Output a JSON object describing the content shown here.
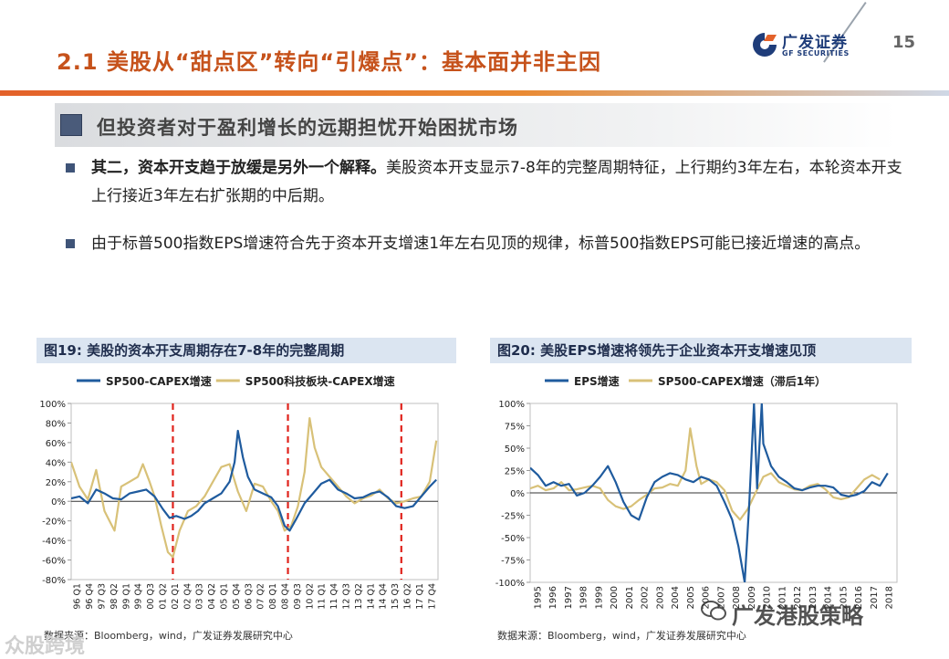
{
  "header": {
    "title": "2.1 美股从“甜点区”转向“引爆点”：基本面并非主因",
    "page_number": "15",
    "logo_cn": "广发证券",
    "logo_en": "GF SECURITIES"
  },
  "subheading": "但投资者对于盈利增长的远期担忧开始困扰市场",
  "bullets": [
    {
      "bold": "其二，资本开支趋于放缓是另外一个解释。",
      "rest": "美股资本开支显示7-8年的完整周期特征，上行期约3年左右，本轮资本开支上行接近3年左右扩张期的中后期。"
    },
    {
      "bold": "",
      "rest": "由于标普500指数EPS增速符合先于资本开支增速1年左右见顶的规律，标普500指数EPS可能已接近增速的高点。"
    }
  ],
  "watermark": "广发港股策略",
  "watermark2": "众股跨境",
  "colors": {
    "accent": "#c6521b",
    "series_blue": "#1f5b9e",
    "series_gold": "#d8c178",
    "cycle_line": "#e0231c"
  },
  "chart_data": [
    {
      "type": "line",
      "figure_label": "图19:",
      "title": "美股的资本开支周期存在7-8年的完整周期",
      "source": "数据来源：Bloomberg，wind，广发证券发展研究中心",
      "ylim": [
        -80,
        100
      ],
      "yticks": [
        "100%",
        "80%",
        "60%",
        "40%",
        "20%",
        "0%",
        "-20%",
        "-40%",
        "-60%",
        "-80%"
      ],
      "ytick_values": [
        100,
        80,
        60,
        40,
        20,
        0,
        -20,
        -40,
        -60,
        -80
      ],
      "x_tick_labels": [
        "96 Q1",
        "96 Q4",
        "97 Q3",
        "98 Q2",
        "99 Q1",
        "99 Q4",
        "00 Q3",
        "01 Q2",
        "02 Q1",
        "02 Q4",
        "03 Q3",
        "04 Q2",
        "05 Q1",
        "05 Q4",
        "06 Q3",
        "07 Q2",
        "08 Q1",
        "08 Q4",
        "09 Q3",
        "10 Q2",
        "11 Q1",
        "11 Q4",
        "12 Q3",
        "13 Q2",
        "14 Q1",
        "14 Q4",
        "15 Q3",
        "16 Q2",
        "17 Q1",
        "17 Q4"
      ],
      "x_start": 1996.0,
      "x_end": 2018.0,
      "cycle_lines_year": [
        2002.1,
        2009.0,
        2015.8
      ],
      "series": [
        {
          "name": "SP500-CAPEX增速",
          "color": "#1f5b9e",
          "points": [
            [
              1996,
              3
            ],
            [
              1996.5,
              5
            ],
            [
              1997,
              -2
            ],
            [
              1997.5,
              12
            ],
            [
              1998,
              8
            ],
            [
              1998.5,
              3
            ],
            [
              1999,
              2
            ],
            [
              1999.5,
              8
            ],
            [
              2000,
              10
            ],
            [
              2000.5,
              12
            ],
            [
              2001,
              5
            ],
            [
              2001.5,
              -8
            ],
            [
              2001.9,
              -17
            ],
            [
              2002.3,
              -15
            ],
            [
              2002.8,
              -18
            ],
            [
              2003.2,
              -15
            ],
            [
              2003.6,
              -10
            ],
            [
              2004,
              -2
            ],
            [
              2004.5,
              3
            ],
            [
              2005,
              8
            ],
            [
              2005.5,
              20
            ],
            [
              2005.8,
              40
            ],
            [
              2006,
              72
            ],
            [
              2006.3,
              45
            ],
            [
              2006.6,
              25
            ],
            [
              2007,
              12
            ],
            [
              2007.5,
              8
            ],
            [
              2008,
              4
            ],
            [
              2008.4,
              -5
            ],
            [
              2008.8,
              -25
            ],
            [
              2009.1,
              -30
            ],
            [
              2009.5,
              -18
            ],
            [
              2010,
              -2
            ],
            [
              2010.5,
              8
            ],
            [
              2011,
              18
            ],
            [
              2011.5,
              22
            ],
            [
              2012,
              12
            ],
            [
              2012.5,
              8
            ],
            [
              2013,
              3
            ],
            [
              2013.5,
              4
            ],
            [
              2014,
              8
            ],
            [
              2014.5,
              10
            ],
            [
              2015,
              4
            ],
            [
              2015.5,
              -5
            ],
            [
              2016,
              -7
            ],
            [
              2016.5,
              -5
            ],
            [
              2017,
              5
            ],
            [
              2017.5,
              15
            ],
            [
              2017.9,
              22
            ]
          ]
        },
        {
          "name": "SP500科技板块-CAPEX增速",
          "color": "#d8c178",
          "points": [
            [
              1996,
              40
            ],
            [
              1996.5,
              15
            ],
            [
              1997,
              2
            ],
            [
              1997.5,
              32
            ],
            [
              1998,
              -10
            ],
            [
              1998.3,
              -20
            ],
            [
              1998.6,
              -30
            ],
            [
              1999,
              15
            ],
            [
              1999.5,
              20
            ],
            [
              2000,
              25
            ],
            [
              2000.3,
              38
            ],
            [
              2000.7,
              20
            ],
            [
              2001,
              5
            ],
            [
              2001.4,
              -25
            ],
            [
              2001.8,
              -52
            ],
            [
              2002.1,
              -57
            ],
            [
              2002.5,
              -30
            ],
            [
              2003,
              -10
            ],
            [
              2003.5,
              -5
            ],
            [
              2004,
              5
            ],
            [
              2004.5,
              20
            ],
            [
              2005,
              35
            ],
            [
              2005.5,
              38
            ],
            [
              2006,
              10
            ],
            [
              2006.5,
              -10
            ],
            [
              2007,
              18
            ],
            [
              2007.5,
              15
            ],
            [
              2008,
              0
            ],
            [
              2008.4,
              -10
            ],
            [
              2008.8,
              -30
            ],
            [
              2009.2,
              -25
            ],
            [
              2009.6,
              -5
            ],
            [
              2010,
              30
            ],
            [
              2010.3,
              85
            ],
            [
              2010.6,
              55
            ],
            [
              2011,
              35
            ],
            [
              2011.5,
              25
            ],
            [
              2012,
              15
            ],
            [
              2012.5,
              5
            ],
            [
              2013,
              -2
            ],
            [
              2013.5,
              3
            ],
            [
              2014,
              6
            ],
            [
              2014.5,
              12
            ],
            [
              2015,
              3
            ],
            [
              2015.5,
              -2
            ],
            [
              2016,
              0
            ],
            [
              2016.5,
              3
            ],
            [
              2017,
              5
            ],
            [
              2017.5,
              20
            ],
            [
              2017.9,
              62
            ]
          ]
        }
      ]
    },
    {
      "type": "line",
      "figure_label": "图20:",
      "title": "美股EPS增速将领先于企业资本开支增速见顶",
      "source": "数据来源：Bloomberg，wind，广发证券发展研究中心",
      "ylim": [
        -100,
        100
      ],
      "yticks": [
        "100%",
        "75%",
        "50%",
        "25%",
        "0%",
        "-25%",
        "-50%",
        "-75%",
        "-100%"
      ],
      "ytick_values": [
        100,
        75,
        50,
        25,
        0,
        -25,
        -50,
        -75,
        -100
      ],
      "x_tick_labels": [
        "1995",
        "1996",
        "1997",
        "1998",
        "1999",
        "2000",
        "2001",
        "2002",
        "2003",
        "2004",
        "2005",
        "2006",
        "2007",
        "2008",
        "2009",
        "2010",
        "2011",
        "2012",
        "2013",
        "2014",
        "2015",
        "2016",
        "2017",
        "2018"
      ],
      "x_start": 1995.0,
      "x_end": 2018.6,
      "series": [
        {
          "name": "EPS增速",
          "color": "#1f5b9e",
          "points": [
            [
              1995,
              28
            ],
            [
              1995.5,
              20
            ],
            [
              1996,
              8
            ],
            [
              1996.5,
              12
            ],
            [
              1997,
              8
            ],
            [
              1997.5,
              10
            ],
            [
              1998,
              -3
            ],
            [
              1998.5,
              0
            ],
            [
              1999,
              8
            ],
            [
              1999.5,
              18
            ],
            [
              2000,
              30
            ],
            [
              2000.5,
              12
            ],
            [
              2001,
              -10
            ],
            [
              2001.5,
              -25
            ],
            [
              2002,
              -30
            ],
            [
              2002.5,
              -5
            ],
            [
              2003,
              12
            ],
            [
              2003.5,
              18
            ],
            [
              2004,
              22
            ],
            [
              2004.5,
              20
            ],
            [
              2005,
              15
            ],
            [
              2005.5,
              12
            ],
            [
              2006,
              18
            ],
            [
              2006.5,
              15
            ],
            [
              2007,
              8
            ],
            [
              2007.5,
              -10
            ],
            [
              2008,
              -30
            ],
            [
              2008.4,
              -60
            ],
            [
              2008.8,
              -100
            ],
            [
              2009.1,
              -10
            ],
            [
              2009.4,
              100
            ],
            [
              2009.6,
              5
            ],
            [
              2009.9,
              100
            ],
            [
              2010,
              55
            ],
            [
              2010.5,
              30
            ],
            [
              2011,
              18
            ],
            [
              2011.5,
              12
            ],
            [
              2012,
              5
            ],
            [
              2012.5,
              3
            ],
            [
              2013,
              6
            ],
            [
              2013.5,
              8
            ],
            [
              2014,
              8
            ],
            [
              2014.5,
              6
            ],
            [
              2015,
              -2
            ],
            [
              2015.5,
              -4
            ],
            [
              2016,
              -2
            ],
            [
              2016.5,
              2
            ],
            [
              2017,
              12
            ],
            [
              2017.5,
              8
            ],
            [
              2018,
              22
            ]
          ]
        },
        {
          "name": "SP500-CAPEX增速（滞后1年）",
          "color": "#d8c178",
          "points": [
            [
              1995,
              5
            ],
            [
              1995.5,
              8
            ],
            [
              1996,
              3
            ],
            [
              1996.5,
              5
            ],
            [
              1997,
              12
            ],
            [
              1997.5,
              3
            ],
            [
              1998,
              4
            ],
            [
              1998.5,
              6
            ],
            [
              1999,
              8
            ],
            [
              1999.5,
              5
            ],
            [
              2000,
              -8
            ],
            [
              2000.5,
              -15
            ],
            [
              2001,
              -18
            ],
            [
              2001.5,
              -15
            ],
            [
              2002,
              -8
            ],
            [
              2002.5,
              -2
            ],
            [
              2003,
              5
            ],
            [
              2003.5,
              6
            ],
            [
              2004,
              10
            ],
            [
              2004.5,
              8
            ],
            [
              2005,
              25
            ],
            [
              2005.3,
              72
            ],
            [
              2005.7,
              30
            ],
            [
              2006,
              10
            ],
            [
              2006.5,
              15
            ],
            [
              2007,
              12
            ],
            [
              2007.5,
              3
            ],
            [
              2008,
              -20
            ],
            [
              2008.5,
              -30
            ],
            [
              2009,
              -18
            ],
            [
              2009.5,
              0
            ],
            [
              2010,
              18
            ],
            [
              2010.5,
              22
            ],
            [
              2011,
              12
            ],
            [
              2011.5,
              8
            ],
            [
              2012,
              4
            ],
            [
              2012.5,
              3
            ],
            [
              2013,
              8
            ],
            [
              2013.5,
              10
            ],
            [
              2014,
              4
            ],
            [
              2014.5,
              -5
            ],
            [
              2015,
              -7
            ],
            [
              2015.5,
              -5
            ],
            [
              2016,
              5
            ],
            [
              2016.5,
              15
            ],
            [
              2017,
              20
            ],
            [
              2017.5,
              15
            ]
          ]
        }
      ]
    }
  ]
}
